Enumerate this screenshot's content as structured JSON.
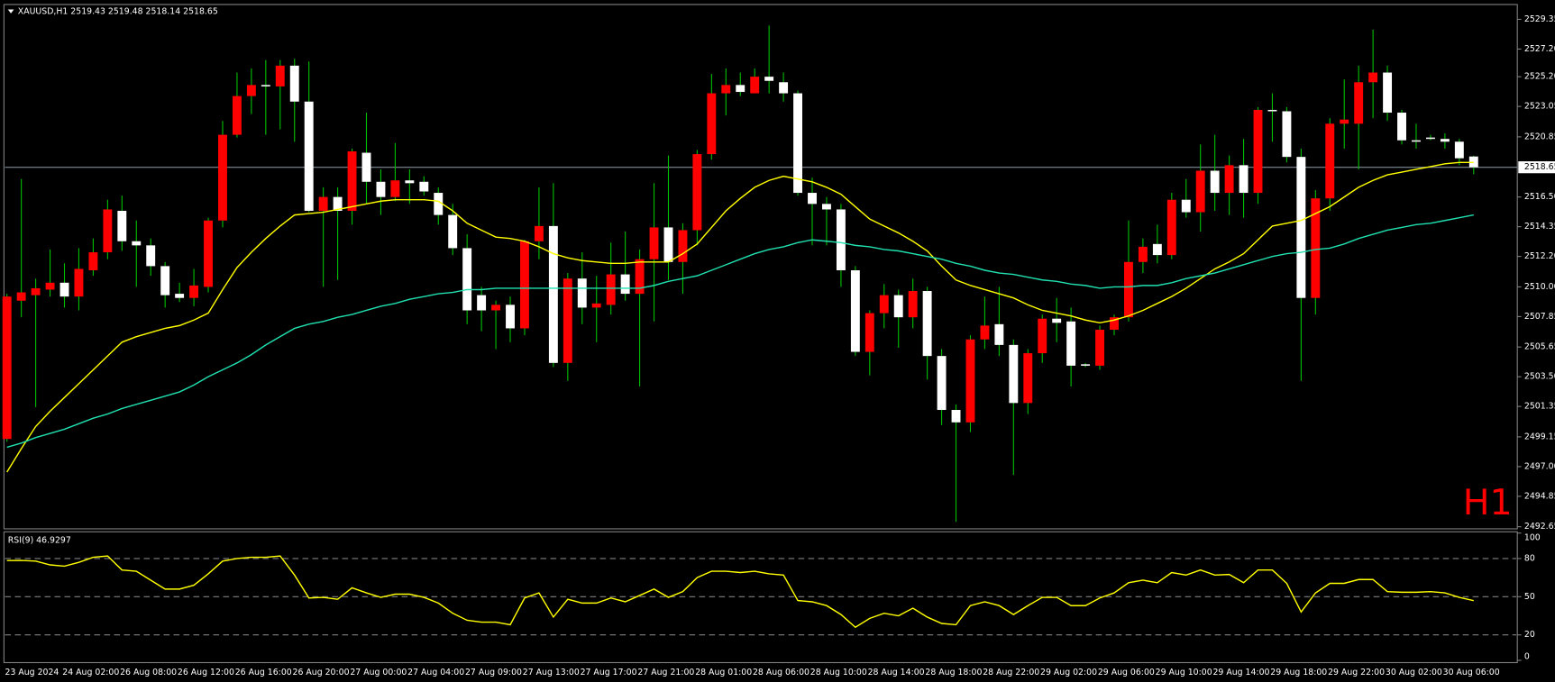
{
  "chart_data": [
    {
      "type": "candlestick",
      "title": "XAUUSD,H1  2519.43 2519.48 2518.14 2518.65",
      "annotation": "H1",
      "up_color": "#ff0000",
      "down_color": "#ffffff",
      "wick_color": "#00c000",
      "last_price": 2518.65,
      "ylim": [
        2492.5,
        2530.35
      ],
      "yticks": [
        2529.35,
        {
          "value": 2527.2,
          "label": "2527.20"
        },
        {
          "value": 2525.2,
          "label": "2525.20"
        },
        2523.05,
        2520.85,
        {
          "value": 2516.5,
          "label": "2516.50"
        },
        2514.35,
        {
          "value": 2512.2,
          "label": "2512.20"
        },
        {
          "value": 2510,
          "label": "2510.00"
        },
        2507.85,
        2505.65,
        {
          "value": 2503.5,
          "label": "2503.50"
        },
        2501.35,
        2499.15,
        {
          "value": 2497,
          "label": "2497.00"
        },
        2494.85,
        2492.65
      ],
      "categories": [
        "23 Aug 2024",
        null,
        null,
        null,
        "24 Aug 02:00",
        null,
        null,
        null,
        "26 Aug 08:00",
        null,
        null,
        null,
        "26 Aug 12:00",
        null,
        null,
        null,
        "26 Aug 16:00",
        null,
        null,
        null,
        "26 Aug 20:00",
        null,
        null,
        null,
        "27 Aug 00:00",
        null,
        null,
        null,
        "27 Aug 04:00",
        null,
        null,
        null,
        "27 Aug 09:00",
        null,
        null,
        null,
        "27 Aug 13:00",
        null,
        null,
        null,
        "27 Aug 17:00",
        null,
        null,
        null,
        "27 Aug 21:00",
        null,
        null,
        null,
        "28 Aug 01:00",
        null,
        null,
        null,
        "28 Aug 06:00",
        null,
        null,
        null,
        "28 Aug 10:00",
        null,
        null,
        null,
        "28 Aug 14:00",
        null,
        null,
        null,
        "28 Aug 18:00",
        null,
        null,
        null,
        "28 Aug 22:00",
        null,
        null,
        null,
        "29 Aug 02:00",
        null,
        null,
        null,
        "29 Aug 06:00",
        null,
        null,
        null,
        "29 Aug 10:00",
        null,
        null,
        null,
        "29 Aug 14:00",
        null,
        null,
        null,
        "29 Aug 18:00",
        null,
        null,
        null,
        "29 Aug 22:00",
        null,
        null,
        null,
        "30 Aug 02:00",
        null,
        null,
        null,
        "30 Aug 06:00",
        null,
        null
      ],
      "open": [
        2499.0,
        2509.0,
        2509.4,
        2509.8,
        2510.3,
        2509.3,
        2511.2,
        2512.5,
        2515.5,
        2513.3,
        2513.0,
        2511.5,
        2509.5,
        2509.2,
        2510.0,
        2514.8,
        2521.0,
        2523.8,
        2524.6,
        2524.5,
        2526.0,
        2523.4,
        2515.5,
        2516.5,
        2515.5,
        2519.7,
        2517.6,
        2516.5,
        2517.7,
        2517.6,
        2516.8,
        2515.2,
        2512.8,
        2509.4,
        2508.3,
        2508.7,
        2507.0,
        2513.3,
        2514.4,
        2504.5,
        2510.6,
        2508.5,
        2508.7,
        2510.9,
        2509.5,
        2512.0,
        2514.3,
        2511.8,
        2514.1,
        2519.6,
        2524.0,
        2524.6,
        2524.0,
        2525.2,
        2524.8,
        2524.0,
        2516.8,
        2516.0,
        2515.6,
        2511.2,
        2505.3,
        2508.1,
        2509.4,
        2507.8,
        2509.7,
        2505.0,
        2501.1,
        2500.2,
        2506.2,
        2507.3,
        2505.8,
        2501.6,
        2505.2,
        2507.7,
        2507.5,
        2504.4,
        2504.3,
        2506.9,
        2507.8,
        2511.8,
        2513.1,
        2512.3,
        2516.3,
        2515.4,
        2518.4,
        2516.8,
        2518.8,
        2516.8,
        2522.8,
        2522.7,
        2519.4,
        2509.2,
        2516.4,
        2521.8,
        2521.8,
        2524.8,
        2525.5,
        2522.6,
        2520.6,
        2520.8,
        2520.7,
        2520.5,
        2519.43
      ],
      "high": [
        2509.5,
        2517.8,
        2510.6,
        2512.7,
        2511.7,
        2512.8,
        2513.5,
        2516.3,
        2516.6,
        2514.8,
        2513.5,
        2511.8,
        2510.3,
        2511.3,
        2515.0,
        2522.0,
        2525.5,
        2525.8,
        2526.4,
        2526.4,
        2526.5,
        2526.3,
        2517.2,
        2517.2,
        2520.0,
        2522.6,
        2518.5,
        2520.4,
        2518.5,
        2518.0,
        2517.2,
        2516.0,
        2513.8,
        2510.0,
        2509.0,
        2509.3,
        2513.4,
        2517.2,
        2517.5,
        2511.0,
        2512.5,
        2510.8,
        2513.2,
        2514.0,
        2512.7,
        2517.5,
        2519.5,
        2514.6,
        2519.9,
        2525.4,
        2525.8,
        2525.5,
        2525.8,
        2528.9,
        2525.5,
        2524.2,
        2517.9,
        2516.5,
        2516.0,
        2511.5,
        2508.3,
        2510.2,
        2509.8,
        2510.6,
        2510.0,
        2505.5,
        2501.5,
        2506.5,
        2509.3,
        2510.0,
        2506.2,
        2505.5,
        2508.0,
        2509.2,
        2508.5,
        2504.5,
        2507.2,
        2508.0,
        2514.8,
        2513.5,
        2514.5,
        2516.8,
        2517.8,
        2520.3,
        2521.0,
        2519.5,
        2520.7,
        2523.0,
        2524.0,
        2523.0,
        2520.0,
        2517.0,
        2522.2,
        2525.0,
        2526.0,
        2528.6,
        2526.0,
        2522.8,
        2521.8,
        2521.0,
        2521.1,
        2520.7,
        2519.48
      ],
      "low": [
        2498.8,
        2507.8,
        2501.3,
        2509.3,
        2508.5,
        2508.3,
        2510.8,
        2512.0,
        2512.6,
        2510.0,
        2510.8,
        2508.5,
        2508.9,
        2508.6,
        2509.6,
        2514.3,
        2520.8,
        2522.5,
        2521.0,
        2521.4,
        2520.5,
        2515.4,
        2510.0,
        2510.5,
        2514.5,
        2516.0,
        2515.2,
        2516.2,
        2516.0,
        2516.6,
        2514.5,
        2512.3,
        2507.3,
        2506.8,
        2505.5,
        2506.0,
        2506.5,
        2512.0,
        2504.2,
        2503.2,
        2507.3,
        2506.0,
        2508.0,
        2509.0,
        2502.8,
        2507.5,
        2510.5,
        2509.5,
        2513.0,
        2519.2,
        2522.4,
        2523.8,
        2524.0,
        2524.0,
        2523.4,
        2516.6,
        2513.0,
        2513.0,
        2510.0,
        2505.0,
        2503.6,
        2507.0,
        2505.6,
        2507.0,
        2503.3,
        2500.0,
        2493.0,
        2499.5,
        2505.5,
        2505.0,
        2496.4,
        2500.8,
        2504.5,
        2506.0,
        2502.8,
        2504.2,
        2504.0,
        2506.5,
        2507.5,
        2511.0,
        2511.7,
        2512.0,
        2515.0,
        2514.0,
        2515.5,
        2515.2,
        2515.0,
        2516.0,
        2520.5,
        2519.0,
        2503.2,
        2508.0,
        2515.5,
        2520.0,
        2518.5,
        2522.2,
        2522.0,
        2520.3,
        2520.0,
        2520.6,
        2520.0,
        2518.8,
        2518.14
      ],
      "close": [
        2509.3,
        2509.6,
        2509.9,
        2510.3,
        2509.3,
        2511.3,
        2512.5,
        2515.6,
        2513.3,
        2513.0,
        2511.5,
        2509.4,
        2509.2,
        2510.1,
        2514.8,
        2521.0,
        2523.8,
        2524.6,
        2524.5,
        2526.0,
        2523.4,
        2515.5,
        2516.5,
        2515.5,
        2519.8,
        2517.6,
        2516.5,
        2517.7,
        2517.5,
        2516.9,
        2515.2,
        2512.8,
        2508.3,
        2508.3,
        2508.7,
        2507.0,
        2513.3,
        2514.4,
        2504.5,
        2510.6,
        2508.5,
        2508.8,
        2510.9,
        2509.5,
        2512.0,
        2514.3,
        2511.8,
        2514.1,
        2519.6,
        2524.0,
        2524.6,
        2524.1,
        2525.2,
        2524.9,
        2524.0,
        2516.8,
        2516.0,
        2515.6,
        2511.2,
        2505.3,
        2508.1,
        2509.4,
        2507.8,
        2509.7,
        2505.0,
        2501.1,
        2500.2,
        2506.2,
        2507.2,
        2505.8,
        2501.6,
        2505.2,
        2507.7,
        2507.4,
        2504.3,
        2504.3,
        2506.9,
        2507.8,
        2511.8,
        2512.9,
        2512.3,
        2516.3,
        2515.4,
        2518.4,
        2516.8,
        2518.8,
        2516.8,
        2522.8,
        2522.7,
        2519.4,
        2509.2,
        2516.4,
        2521.8,
        2522.1,
        2524.8,
        2525.5,
        2522.6,
        2520.6,
        2520.5,
        2520.7,
        2520.5,
        2519.3,
        2518.65
      ],
      "overlays": [
        {
          "color": "#ffff00",
          "values": [
            2496.6,
            2498.3,
            2499.9,
            2501.0,
            2502.0,
            2503.0,
            2504.0,
            2505.0,
            2506.0,
            2506.4,
            2506.7,
            2507.0,
            2507.2,
            2507.6,
            2508.1,
            2509.8,
            2511.4,
            2512.5,
            2513.5,
            2514.4,
            2515.2,
            2515.3,
            2515.4,
            2515.6,
            2515.8,
            2516.0,
            2516.2,
            2516.3,
            2516.3,
            2516.3,
            2516.2,
            2515.5,
            2514.6,
            2514.1,
            2513.6,
            2513.5,
            2513.3,
            2512.9,
            2512.4,
            2512.1,
            2511.9,
            2511.8,
            2511.7,
            2511.7,
            2511.8,
            2511.8,
            2511.8,
            2512.4,
            2513.1,
            2514.3,
            2515.5,
            2516.4,
            2517.2,
            2517.7,
            2518.0,
            2517.8,
            2517.6,
            2517.2,
            2516.7,
            2515.8,
            2514.9,
            2514.4,
            2513.9,
            2513.3,
            2512.6,
            2511.5,
            2510.5,
            2510.1,
            2509.8,
            2509.5,
            2509.2,
            2508.7,
            2508.3,
            2508.1,
            2507.9,
            2507.6,
            2507.4,
            2507.6,
            2507.9,
            2508.3,
            2508.8,
            2509.3,
            2509.9,
            2510.6,
            2511.3,
            2511.8,
            2512.4,
            2513.4,
            2514.4,
            2514.6,
            2514.8,
            2515.3,
            2515.8,
            2516.5,
            2517.2,
            2517.7,
            2518.1,
            2518.3,
            2518.5,
            2518.7,
            2518.9,
            2519.0,
            2519.0
          ]
        },
        {
          "color": "#20e0b0",
          "values": [
            2498.4,
            2498.7,
            2499.1,
            2499.4,
            2499.7,
            2500.1,
            2500.5,
            2500.8,
            2501.2,
            2501.5,
            2501.8,
            2502.1,
            2502.4,
            2502.9,
            2503.5,
            2504.0,
            2504.5,
            2505.1,
            2505.8,
            2506.4,
            2507.0,
            2507.3,
            2507.5,
            2507.8,
            2508.0,
            2508.3,
            2508.6,
            2508.8,
            2509.1,
            2509.3,
            2509.5,
            2509.6,
            2509.8,
            2509.8,
            2509.9,
            2509.9,
            2509.9,
            2509.9,
            2509.9,
            2509.9,
            2509.9,
            2509.9,
            2509.9,
            2509.9,
            2509.9,
            2510.1,
            2510.4,
            2510.6,
            2510.8,
            2511.2,
            2511.6,
            2512.0,
            2512.4,
            2512.7,
            2512.9,
            2513.2,
            2513.4,
            2513.3,
            2513.2,
            2513.0,
            2512.9,
            2512.7,
            2512.6,
            2512.4,
            2512.2,
            2512.0,
            2511.7,
            2511.5,
            2511.2,
            2511.0,
            2510.9,
            2510.7,
            2510.5,
            2510.4,
            2510.2,
            2510.1,
            2509.9,
            2510.0,
            2510.0,
            2510.1,
            2510.1,
            2510.3,
            2510.6,
            2510.8,
            2511.0,
            2511.3,
            2511.6,
            2511.9,
            2512.2,
            2512.4,
            2512.5,
            2512.7,
            2512.8,
            2513.1,
            2513.5,
            2513.8,
            2514.1,
            2514.3,
            2514.5,
            2514.6,
            2514.8,
            2515.0,
            2515.2
          ]
        }
      ]
    },
    {
      "type": "line",
      "title": "RSI(9) 46.9297",
      "color": "#ffff00",
      "grid": true,
      "ylim": [
        0,
        100
      ],
      "yticks": [
        0,
        20,
        50,
        80,
        100
      ],
      "values": [
        78.4,
        78.5,
        78,
        75,
        74,
        77,
        81,
        82,
        71,
        70,
        63,
        56,
        56,
        59,
        68,
        78,
        80,
        81,
        81,
        82,
        67,
        49,
        49.5,
        48,
        57,
        53,
        49.5,
        52,
        52,
        49.5,
        45,
        37,
        31.5,
        30,
        30,
        28,
        49,
        53,
        34,
        48,
        45,
        45,
        49,
        46,
        51,
        56,
        49.5,
        54,
        65,
        70,
        70,
        69,
        70,
        68,
        67,
        47,
        46,
        43,
        36,
        26,
        33,
        37,
        35,
        41,
        34,
        29,
        28,
        43,
        46,
        43,
        36,
        43,
        49.5,
        49.5,
        43,
        43,
        49,
        53,
        61,
        63,
        61,
        69,
        67,
        71,
        67,
        67.5,
        61,
        71,
        71,
        60.5,
        38,
        53,
        60.5,
        60.5,
        63.5,
        63.5,
        54,
        53.5,
        53.5,
        54,
        53,
        49.5,
        46.9297
      ]
    }
  ]
}
